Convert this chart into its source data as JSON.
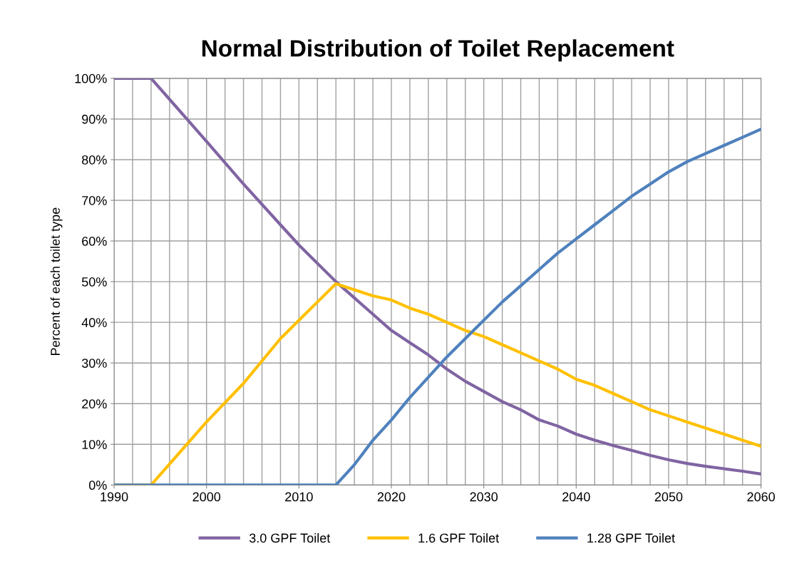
{
  "chart_data": {
    "type": "line",
    "title": "Normal Distribution of Toilet Replacement",
    "ylabel": "Percent of each toilet type",
    "xlim": [
      1990,
      2060
    ],
    "xticks": [
      1990,
      {
        "value": 1992,
        "label": null
      },
      {
        "value": 1994,
        "label": null
      },
      {
        "value": 1996,
        "label": null
      },
      {
        "value": 1998,
        "label": null
      },
      2000,
      {
        "value": 2002,
        "label": null
      },
      {
        "value": 2004,
        "label": null
      },
      {
        "value": 2006,
        "label": null
      },
      {
        "value": 2008,
        "label": null
      },
      2010,
      {
        "value": 2012,
        "label": null
      },
      {
        "value": 2014,
        "label": null
      },
      {
        "value": 2016,
        "label": null
      },
      {
        "value": 2018,
        "label": null
      },
      2020,
      {
        "value": 2022,
        "label": null
      },
      {
        "value": 2024,
        "label": null
      },
      {
        "value": 2026,
        "label": null
      },
      {
        "value": 2028,
        "label": null
      },
      2030,
      {
        "value": 2032,
        "label": null
      },
      {
        "value": 2034,
        "label": null
      },
      {
        "value": 2036,
        "label": null
      },
      {
        "value": 2038,
        "label": null
      },
      2040,
      {
        "value": 2042,
        "label": null
      },
      {
        "value": 2044,
        "label": null
      },
      {
        "value": 2046,
        "label": null
      },
      {
        "value": 2048,
        "label": null
      },
      2050,
      {
        "value": 2052,
        "label": null
      },
      {
        "value": 2054,
        "label": null
      },
      {
        "value": 2056,
        "label": null
      },
      {
        "value": 2058,
        "label": null
      },
      2060
    ],
    "ylim": [
      0,
      100
    ],
    "yticks": [
      {
        "value": 0,
        "label": "0%"
      },
      {
        "value": 10,
        "label": "10%"
      },
      {
        "value": 20,
        "label": "20%"
      },
      {
        "value": 30,
        "label": "30%"
      },
      {
        "value": 40,
        "label": "40%"
      },
      {
        "value": 50,
        "label": "50%"
      },
      {
        "value": 60,
        "label": "60%"
      },
      {
        "value": 70,
        "label": "70%"
      },
      {
        "value": 80,
        "label": "80%"
      },
      {
        "value": 90,
        "label": "90%"
      },
      {
        "value": 100,
        "label": "100%"
      }
    ],
    "grid": true,
    "legend": "bottom",
    "marker": "none",
    "line_style": "solid",
    "series": [
      {
        "name": "3.0 GPF Toilet",
        "color": "#8064a2",
        "x": [
          1990,
          1994,
          2000,
          2004,
          2008,
          2010,
          2014,
          2016,
          2018,
          2020,
          2022,
          2024,
          2026,
          2028,
          2030,
          2032,
          2034,
          2036,
          2038,
          2040,
          2042,
          2044,
          2046,
          2048,
          2050,
          2052,
          2054,
          2056,
          2058,
          2060
        ],
        "values": [
          100,
          100,
          84.5,
          74,
          64,
          59,
          50,
          46,
          42,
          38,
          35,
          32,
          28.5,
          25.5,
          23,
          20.5,
          18.5,
          16,
          14.5,
          12.5,
          11,
          9.7,
          8.5,
          7.3,
          6.2,
          5.3,
          4.6,
          4,
          3.4,
          2.7
        ]
      },
      {
        "name": "1.6 GPF Toilet",
        "color": "#ffc000",
        "x": [
          1990,
          1994,
          2000,
          2004,
          2008,
          2010,
          2012,
          2014,
          2016,
          2018,
          2020,
          2022,
          2024,
          2026,
          2028,
          2030,
          2032,
          2034,
          2036,
          2038,
          2040,
          2042,
          2044,
          2046,
          2048,
          2050,
          2052,
          2054,
          2056,
          2058,
          2060
        ],
        "values": [
          0,
          0,
          15.5,
          25,
          36,
          40.5,
          45,
          49.5,
          48,
          46.5,
          45.5,
          43.5,
          42,
          40,
          38,
          36.5,
          34.5,
          32.5,
          30.5,
          28.5,
          26,
          24.5,
          22.5,
          20.5,
          18.5,
          17,
          15.5,
          14,
          12.5,
          11,
          9.5
        ]
      },
      {
        "name": "1.28 GPF Toilet",
        "color": "#4f81bd",
        "x": [
          1990,
          2014,
          2016,
          2018,
          2020,
          2022,
          2024,
          2026,
          2028,
          2030,
          2032,
          2034,
          2036,
          2038,
          2040,
          2042,
          2044,
          2046,
          2048,
          2050,
          2052,
          2054,
          2056,
          2058,
          2060
        ],
        "values": [
          0,
          0,
          5,
          11,
          16,
          21.5,
          26.5,
          31.5,
          36,
          40.5,
          45,
          49,
          53,
          57,
          60.5,
          64,
          67.5,
          71,
          74,
          77,
          79.5,
          81.5,
          83.5,
          85.5,
          87.5
        ]
      }
    ]
  }
}
